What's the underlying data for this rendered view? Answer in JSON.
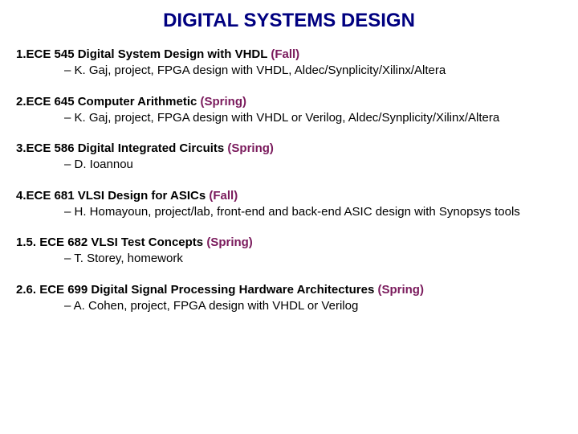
{
  "title": "DIGITAL SYSTEMS DESIGN",
  "title_color": "#000080",
  "semester_color": "#7a1a5c",
  "courses": [
    {
      "lead": "1.   ",
      "name": "ECE 545 Digital System Design with VHDL ",
      "semester": "(Fall)",
      "desc": "– K. Gaj, project, FPGA design with VHDL, Aldec/Synplicity/Xilinx/Altera"
    },
    {
      "lead": "2. ",
      "name": "ECE 645 Computer Arithmetic ",
      "semester": "(Spring)",
      "desc": "– K. Gaj, project, FPGA design with VHDL or Verilog, Aldec/Synplicity/Xilinx/Altera"
    },
    {
      "lead": "3. ",
      "name": "ECE 586 Digital Integrated Circuits ",
      "semester": "(Spring)",
      "desc": "– D. Ioannou"
    },
    {
      "lead": "4. ",
      "name": "ECE 681 VLSI Design for ASICs ",
      "semester": "(Fall)",
      "desc": "– H. Homayoun, project/lab, front-end and back-end ASIC design with Synopsys tools"
    },
    {
      "lead": "1.   ",
      "name": "5. ECE 682 VLSI Test Concepts ",
      "semester": "(Spring)",
      "desc": "– T. Storey, homework"
    },
    {
      "lead": "2.   ",
      "name": "6. ECE 699 Digital Signal Processing Hardware Architectures ",
      "semester": "(Spring)",
      "desc": "– A. Cohen, project, FPGA design with VHDL or Verilog"
    }
  ]
}
